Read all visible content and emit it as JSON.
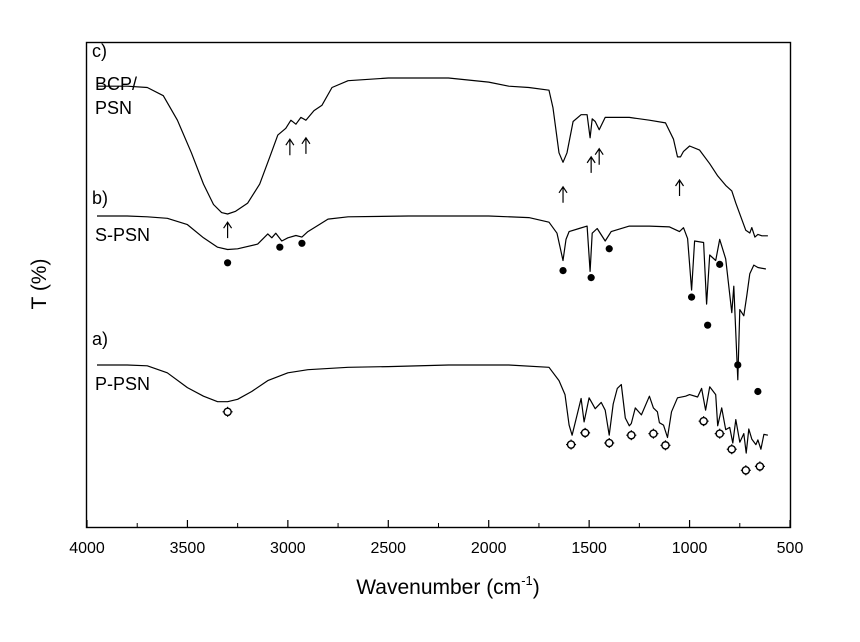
{
  "chart_data": {
    "type": "line",
    "title": "",
    "xlabel_main": "Wavenumber (cm",
    "xlabel_sup": "-1",
    "xlabel_tail": ")",
    "ylabel": "T (%)",
    "xlim": [
      4000,
      500
    ],
    "x_reversed": true,
    "x_ticks": [
      4000,
      3500,
      3000,
      2500,
      2000,
      1500,
      1000,
      500
    ],
    "y_ticks": false,
    "grid": false,
    "series": [
      {
        "panel": "c)",
        "name_lines": [
          "BCP/",
          "PSN"
        ],
        "offset_frac": 0.0,
        "points": [
          [
            3950,
            0.06
          ],
          [
            3800,
            0.06
          ],
          [
            3700,
            0.07
          ],
          [
            3620,
            0.13
          ],
          [
            3550,
            0.31
          ],
          [
            3480,
            0.55
          ],
          [
            3420,
            0.78
          ],
          [
            3370,
            0.93
          ],
          [
            3330,
            0.99
          ],
          [
            3300,
            1.0
          ],
          [
            3260,
            0.98
          ],
          [
            3200,
            0.92
          ],
          [
            3140,
            0.78
          ],
          [
            3090,
            0.58
          ],
          [
            3050,
            0.42
          ],
          [
            3010,
            0.37
          ],
          [
            2985,
            0.31
          ],
          [
            2960,
            0.34
          ],
          [
            2935,
            0.29
          ],
          [
            2910,
            0.31
          ],
          [
            2870,
            0.24
          ],
          [
            2830,
            0.2
          ],
          [
            2780,
            0.07
          ],
          [
            2700,
            0.02
          ],
          [
            2500,
            0.0
          ],
          [
            2200,
            0.0
          ],
          [
            2000,
            0.03
          ],
          [
            1900,
            0.06
          ],
          [
            1800,
            0.07
          ],
          [
            1700,
            0.09
          ],
          [
            1680,
            0.22
          ],
          [
            1650,
            0.55
          ],
          [
            1630,
            0.62
          ],
          [
            1610,
            0.55
          ],
          [
            1580,
            0.32
          ],
          [
            1540,
            0.27
          ],
          [
            1510,
            0.27
          ],
          [
            1495,
            0.44
          ],
          [
            1485,
            0.3
          ],
          [
            1470,
            0.32
          ],
          [
            1450,
            0.38
          ],
          [
            1420,
            0.29
          ],
          [
            1300,
            0.29
          ],
          [
            1200,
            0.31
          ],
          [
            1120,
            0.33
          ],
          [
            1080,
            0.45
          ],
          [
            1060,
            0.58
          ],
          [
            1045,
            0.58
          ],
          [
            1030,
            0.54
          ],
          [
            1000,
            0.5
          ],
          [
            950,
            0.53
          ],
          [
            900,
            0.63
          ],
          [
            860,
            0.72
          ],
          [
            820,
            0.79
          ],
          [
            790,
            0.83
          ],
          [
            770,
            0.92
          ],
          [
            740,
            1.04
          ],
          [
            720,
            1.12
          ],
          [
            700,
            1.14
          ],
          [
            690,
            1.1
          ],
          [
            675,
            1.17
          ],
          [
            660,
            1.15
          ],
          [
            640,
            1.16
          ],
          [
            610,
            1.16
          ]
        ],
        "markers": {
          "style": "up-arrow",
          "points": [
            [
              3300,
              1.06
            ],
            [
              2990,
              0.45
            ],
            [
              2910,
              0.44
            ],
            [
              1630,
              0.8
            ],
            [
              1490,
              0.58
            ],
            [
              1450,
              0.52
            ],
            [
              1050,
              0.75
            ]
          ]
        }
      },
      {
        "panel": "b)",
        "name": "S-PSN",
        "offset_frac": 0.0,
        "points": [
          [
            3950,
            0.0
          ],
          [
            3800,
            0.0
          ],
          [
            3700,
            0.01
          ],
          [
            3600,
            0.03
          ],
          [
            3500,
            0.11
          ],
          [
            3420,
            0.28
          ],
          [
            3350,
            0.4
          ],
          [
            3300,
            0.43
          ],
          [
            3250,
            0.42
          ],
          [
            3150,
            0.36
          ],
          [
            3100,
            0.23
          ],
          [
            3080,
            0.28
          ],
          [
            3060,
            0.22
          ],
          [
            3030,
            0.32
          ],
          [
            3000,
            0.28
          ],
          [
            2960,
            0.25
          ],
          [
            2930,
            0.27
          ],
          [
            2900,
            0.2
          ],
          [
            2850,
            0.12
          ],
          [
            2800,
            0.04
          ],
          [
            2700,
            0.01
          ],
          [
            2400,
            0.0
          ],
          [
            2000,
            0.0
          ],
          [
            1800,
            0.02
          ],
          [
            1700,
            0.08
          ],
          [
            1660,
            0.22
          ],
          [
            1630,
            0.57
          ],
          [
            1615,
            0.3
          ],
          [
            1600,
            0.2
          ],
          [
            1550,
            0.16
          ],
          [
            1510,
            0.13
          ],
          [
            1495,
            0.71
          ],
          [
            1485,
            0.22
          ],
          [
            1460,
            0.16
          ],
          [
            1420,
            0.32
          ],
          [
            1390,
            0.2
          ],
          [
            1300,
            0.13
          ],
          [
            1200,
            0.13
          ],
          [
            1100,
            0.14
          ],
          [
            1050,
            0.2
          ],
          [
            1030,
            0.15
          ],
          [
            1010,
            0.29
          ],
          [
            990,
            0.95
          ],
          [
            975,
            0.32
          ],
          [
            930,
            0.34
          ],
          [
            915,
            1.13
          ],
          [
            900,
            0.5
          ],
          [
            870,
            0.57
          ],
          [
            850,
            0.3
          ],
          [
            820,
            0.55
          ],
          [
            790,
            1.24
          ],
          [
            780,
            0.9
          ],
          [
            760,
            2.1
          ],
          [
            750,
            1.2
          ],
          [
            730,
            1.28
          ],
          [
            715,
            1.02
          ],
          [
            700,
            0.74
          ],
          [
            680,
            0.63
          ],
          [
            660,
            0.66
          ],
          [
            620,
            0.68
          ]
        ],
        "markers": {
          "style": "dot",
          "points": [
            [
              3300,
              0.6
            ],
            [
              3040,
              0.4
            ],
            [
              2930,
              0.35
            ],
            [
              1630,
              0.7
            ],
            [
              1490,
              0.79
            ],
            [
              1400,
              0.42
            ],
            [
              990,
              1.04
            ],
            [
              910,
              1.4
            ],
            [
              850,
              0.62
            ],
            [
              760,
              1.91
            ],
            [
              660,
              2.25
            ]
          ]
        }
      },
      {
        "panel": "a)",
        "name": "P-PSN",
        "offset_frac": 0.0,
        "points": [
          [
            3950,
            0.0
          ],
          [
            3800,
            0.0
          ],
          [
            3700,
            0.01
          ],
          [
            3600,
            0.1
          ],
          [
            3500,
            0.29
          ],
          [
            3420,
            0.4
          ],
          [
            3350,
            0.47
          ],
          [
            3300,
            0.47
          ],
          [
            3250,
            0.44
          ],
          [
            3180,
            0.34
          ],
          [
            3100,
            0.2
          ],
          [
            3000,
            0.1
          ],
          [
            2900,
            0.06
          ],
          [
            2700,
            0.03
          ],
          [
            2500,
            0.02
          ],
          [
            2200,
            0.0
          ],
          [
            1900,
            0.0
          ],
          [
            1700,
            0.03
          ],
          [
            1650,
            0.2
          ],
          [
            1620,
            0.38
          ],
          [
            1600,
            0.77
          ],
          [
            1585,
            0.9
          ],
          [
            1560,
            0.64
          ],
          [
            1540,
            0.43
          ],
          [
            1525,
            0.73
          ],
          [
            1500,
            0.42
          ],
          [
            1470,
            0.56
          ],
          [
            1440,
            0.48
          ],
          [
            1420,
            0.58
          ],
          [
            1400,
            0.9
          ],
          [
            1380,
            0.5
          ],
          [
            1360,
            0.3
          ],
          [
            1340,
            0.25
          ],
          [
            1320,
            0.68
          ],
          [
            1300,
            0.78
          ],
          [
            1290,
            0.75
          ],
          [
            1270,
            0.55
          ],
          [
            1240,
            0.64
          ],
          [
            1200,
            0.4
          ],
          [
            1180,
            0.55
          ],
          [
            1160,
            0.6
          ],
          [
            1150,
            0.74
          ],
          [
            1130,
            0.77
          ],
          [
            1110,
            0.93
          ],
          [
            1090,
            0.6
          ],
          [
            1060,
            0.42
          ],
          [
            1020,
            0.4
          ],
          [
            1000,
            0.38
          ],
          [
            960,
            0.41
          ],
          [
            940,
            0.3
          ],
          [
            920,
            0.58
          ],
          [
            900,
            0.28
          ],
          [
            870,
            0.38
          ],
          [
            860,
            0.78
          ],
          [
            840,
            0.55
          ],
          [
            820,
            0.83
          ],
          [
            800,
            0.8
          ],
          [
            785,
            1.0
          ],
          [
            770,
            0.7
          ],
          [
            750,
            0.99
          ],
          [
            730,
            0.88
          ],
          [
            718,
            1.13
          ],
          [
            705,
            0.82
          ],
          [
            690,
            0.95
          ],
          [
            670,
            1.02
          ],
          [
            660,
            0.96
          ],
          [
            645,
            1.08
          ],
          [
            630,
            0.89
          ],
          [
            610,
            0.9
          ]
        ],
        "markers": {
          "style": "ring",
          "points": [
            [
              3300,
              0.6
            ],
            [
              1590,
              1.02
            ],
            [
              1520,
              0.87
            ],
            [
              1400,
              1.0
            ],
            [
              1290,
              0.9
            ],
            [
              1180,
              0.88
            ],
            [
              1120,
              1.03
            ],
            [
              930,
              0.72
            ],
            [
              850,
              0.88
            ],
            [
              790,
              1.08
            ],
            [
              720,
              1.35
            ],
            [
              650,
              1.3
            ]
          ]
        }
      }
    ]
  }
}
